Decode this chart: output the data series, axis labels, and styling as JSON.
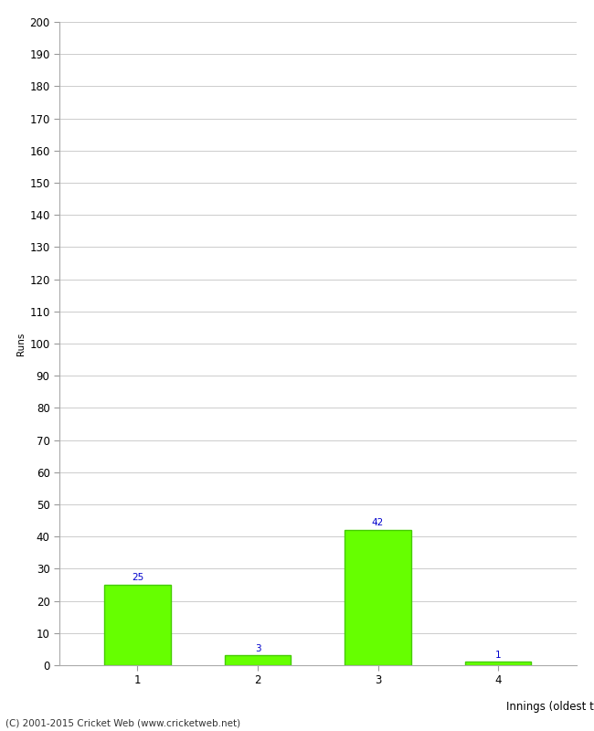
{
  "categories": [
    "1",
    "2",
    "3",
    "4"
  ],
  "values": [
    25,
    3,
    42,
    1
  ],
  "bar_color": "#66ff00",
  "bar_edge_color": "#44cc00",
  "value_label_color": "#0000cc",
  "ylabel": "Runs",
  "xlabel": "Innings (oldest to newest)",
  "ylim": [
    0,
    200
  ],
  "yticks": [
    0,
    10,
    20,
    30,
    40,
    50,
    60,
    70,
    80,
    90,
    100,
    110,
    120,
    130,
    140,
    150,
    160,
    170,
    180,
    190,
    200
  ],
  "background_color": "#ffffff",
  "footer_text": "(C) 2001-2015 Cricket Web (www.cricketweb.net)",
  "grid_color": "#cccccc",
  "value_fontsize": 7.5,
  "axis_label_fontsize": 8.5,
  "tick_fontsize": 8.5,
  "ylabel_fontsize": 7.5,
  "footer_fontsize": 7.5,
  "bar_width": 0.55
}
